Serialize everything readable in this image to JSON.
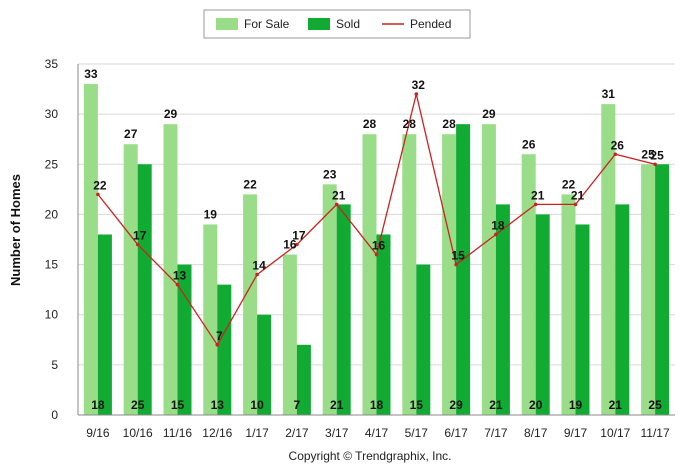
{
  "chart_data": {
    "type": "bar",
    "ylabel": "Number of Homes",
    "xlabel": "",
    "ylim": [
      0,
      35
    ],
    "yticks": [
      0,
      5,
      10,
      15,
      20,
      25,
      30,
      35
    ],
    "grid": true,
    "legend_position": "top-center",
    "categories": [
      "9/16",
      "10/16",
      "11/16",
      "12/16",
      "1/17",
      "2/17",
      "3/17",
      "4/17",
      "5/17",
      "6/17",
      "7/17",
      "8/17",
      "9/17",
      "10/17",
      "11/17"
    ],
    "series": [
      {
        "name": "For Sale",
        "type": "bar",
        "color": "#99dd88",
        "values": [
          33,
          27,
          29,
          19,
          22,
          16,
          23,
          28,
          28,
          28,
          29,
          26,
          22,
          31,
          25
        ]
      },
      {
        "name": "Sold",
        "type": "bar",
        "color": "#11aa33",
        "values": [
          18,
          25,
          15,
          13,
          10,
          7,
          21,
          18,
          15,
          29,
          21,
          20,
          19,
          21,
          25
        ]
      },
      {
        "name": "Pended",
        "type": "line",
        "color": "#cc2222",
        "values": [
          22,
          17,
          13,
          7,
          14,
          17,
          21,
          16,
          32,
          15,
          18,
          21,
          21,
          26,
          25
        ]
      }
    ],
    "footer": "Copyright © Trendgraphix, Inc."
  }
}
